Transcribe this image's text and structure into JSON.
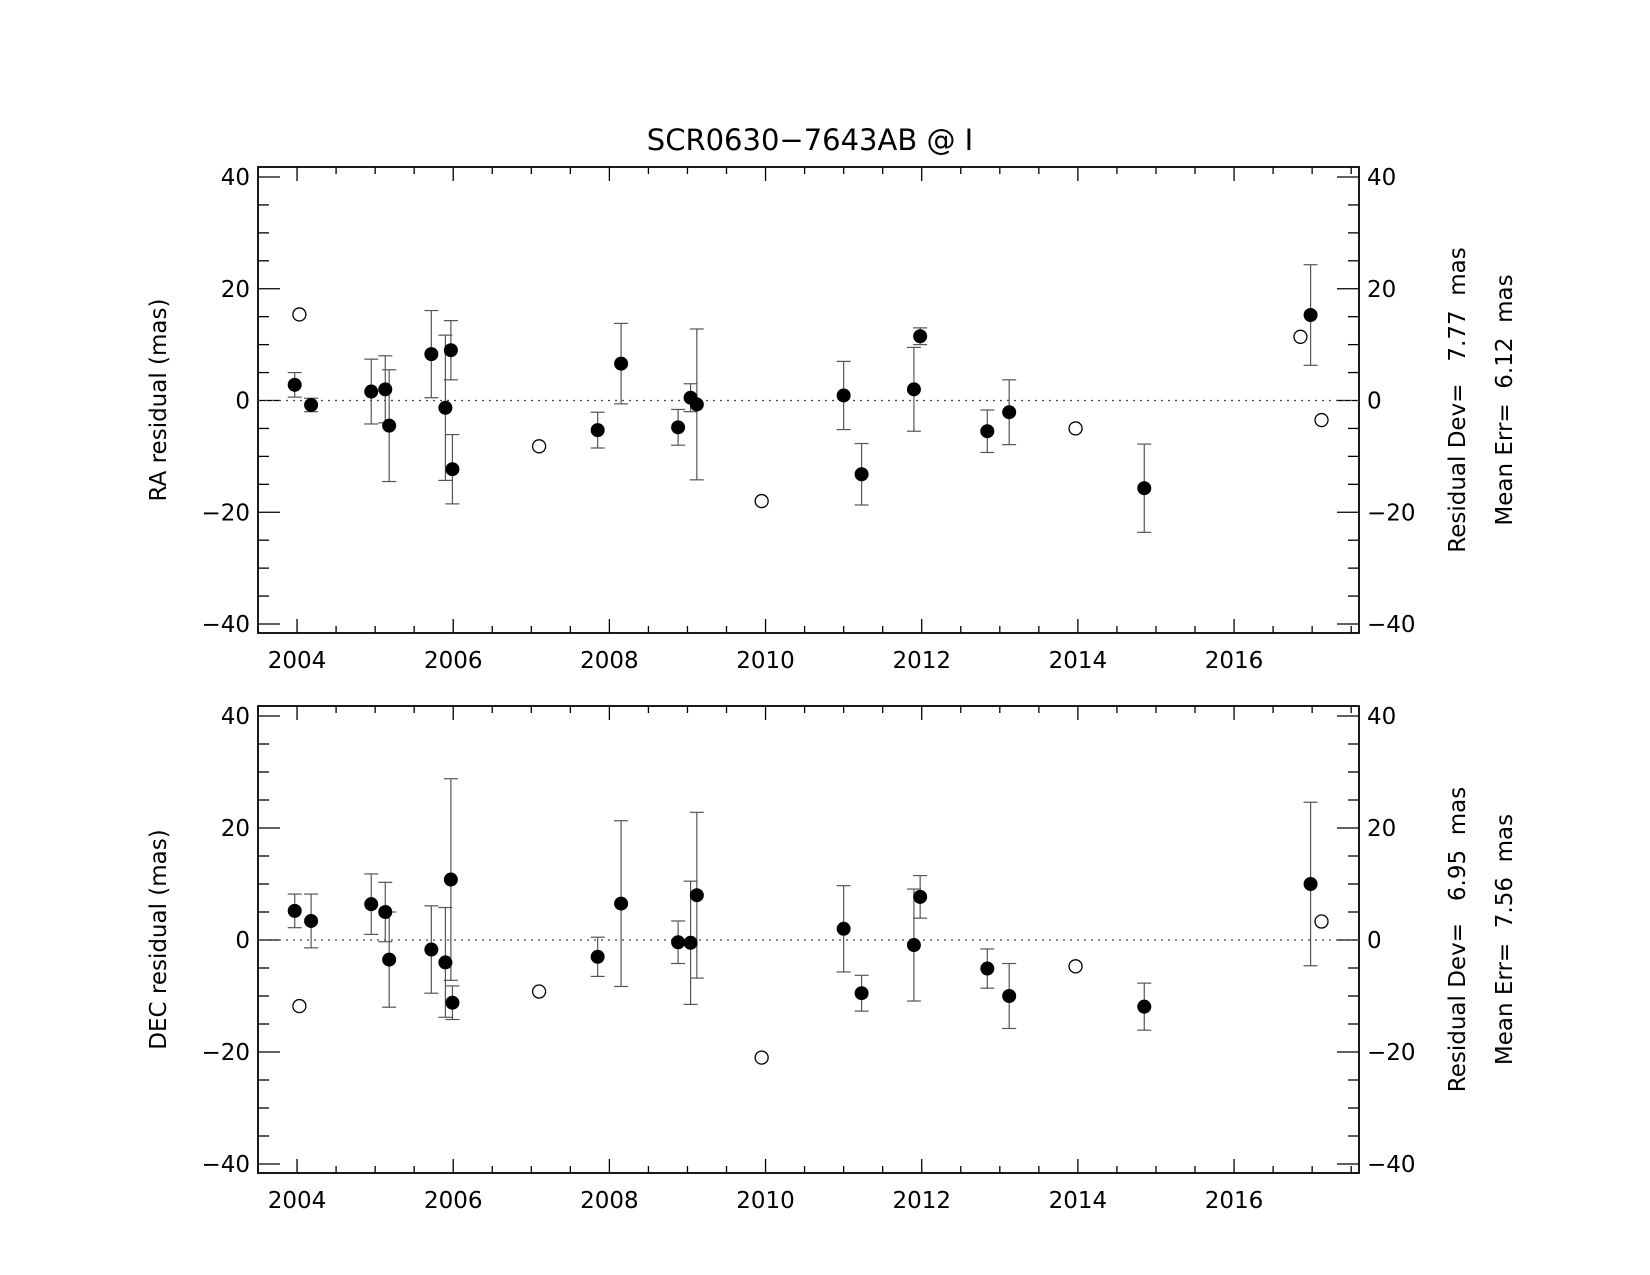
{
  "title": "SCR0630−7643AB @ I",
  "chart_data": [
    {
      "type": "scatter",
      "panel": "top",
      "ylabel": "RA residual (mas)",
      "xlim": [
        2003.5,
        2017.6
      ],
      "ylim": [
        -40,
        40
      ],
      "xticks": [
        2004,
        2006,
        2008,
        2010,
        2012,
        2014,
        2016
      ],
      "yticks": [
        -40,
        -20,
        0,
        20,
        40
      ],
      "grid": false,
      "zero_line": "dotted",
      "stats": [
        "Residual Dev=   7.77  mas",
        "Mean Err=  6.12  mas"
      ],
      "used": [
        {
          "x": 2003.97,
          "y": 2.8,
          "err": 2.2
        },
        {
          "x": 2004.18,
          "y": -0.8,
          "err": 1.2
        },
        {
          "x": 2004.95,
          "y": 1.6,
          "err": 5.8
        },
        {
          "x": 2005.13,
          "y": 2.0,
          "err": 6.0
        },
        {
          "x": 2005.18,
          "y": -4.5,
          "err": 10.0
        },
        {
          "x": 2005.72,
          "y": 8.3,
          "err": 7.8
        },
        {
          "x": 2005.9,
          "y": -1.3,
          "err": 13.0
        },
        {
          "x": 2005.97,
          "y": 9.0,
          "err": 5.3
        },
        {
          "x": 2005.99,
          "y": -12.3,
          "err": 6.2
        },
        {
          "x": 2007.85,
          "y": -5.3,
          "err": 3.2
        },
        {
          "x": 2008.15,
          "y": 6.6,
          "err": 7.2
        },
        {
          "x": 2008.88,
          "y": -4.8,
          "err": 3.2
        },
        {
          "x": 2009.04,
          "y": 0.5,
          "err": 2.5
        },
        {
          "x": 2009.12,
          "y": -0.7,
          "err": 13.5
        },
        {
          "x": 2011.0,
          "y": 0.9,
          "err": 6.1
        },
        {
          "x": 2011.23,
          "y": -13.2,
          "err": 5.5
        },
        {
          "x": 2011.9,
          "y": 2.0,
          "err": 7.5
        },
        {
          "x": 2011.98,
          "y": 11.5,
          "err": 1.5
        },
        {
          "x": 2012.84,
          "y": -5.5,
          "err": 3.8
        },
        {
          "x": 2013.12,
          "y": -2.1,
          "err": 5.8
        },
        {
          "x": 2014.85,
          "y": -15.7,
          "err": 7.9
        },
        {
          "x": 2016.98,
          "y": 15.3,
          "err": 9.0
        }
      ],
      "rejected": [
        {
          "x": 2004.03,
          "y": 15.4
        },
        {
          "x": 2007.1,
          "y": -8.2
        },
        {
          "x": 2009.95,
          "y": -18.0
        },
        {
          "x": 2013.97,
          "y": -5.0
        },
        {
          "x": 2016.85,
          "y": 11.4
        },
        {
          "x": 2017.12,
          "y": -3.5
        }
      ]
    },
    {
      "type": "scatter",
      "panel": "bottom",
      "ylabel": "DEC residual (mas)",
      "xlim": [
        2003.5,
        2017.6
      ],
      "ylim": [
        -40,
        40
      ],
      "xticks": [
        2004,
        2006,
        2008,
        2010,
        2012,
        2014,
        2016
      ],
      "yticks": [
        -40,
        -20,
        0,
        20,
        40
      ],
      "grid": false,
      "zero_line": "dotted",
      "stats": [
        "Residual Dev=   6.95  mas",
        "Mean Err=  7.56  mas"
      ],
      "used": [
        {
          "x": 2003.97,
          "y": 5.2,
          "err": 3.0
        },
        {
          "x": 2004.18,
          "y": 3.4,
          "err": 4.8
        },
        {
          "x": 2004.95,
          "y": 6.4,
          "err": 5.4
        },
        {
          "x": 2005.13,
          "y": 5.0,
          "err": 5.3
        },
        {
          "x": 2005.18,
          "y": -3.5,
          "err": 8.5
        },
        {
          "x": 2005.72,
          "y": -1.7,
          "err": 7.8
        },
        {
          "x": 2005.9,
          "y": -4.0,
          "err": 9.8
        },
        {
          "x": 2005.97,
          "y": 10.8,
          "err": 18.0
        },
        {
          "x": 2005.99,
          "y": -11.2,
          "err": 3.0
        },
        {
          "x": 2007.85,
          "y": -3.0,
          "err": 3.5
        },
        {
          "x": 2008.15,
          "y": 6.5,
          "err": 14.8
        },
        {
          "x": 2008.88,
          "y": -0.4,
          "err": 3.8
        },
        {
          "x": 2009.04,
          "y": -0.5,
          "err": 11.0
        },
        {
          "x": 2009.12,
          "y": 8.0,
          "err": 14.8
        },
        {
          "x": 2011.0,
          "y": 2.0,
          "err": 7.7
        },
        {
          "x": 2011.23,
          "y": -9.5,
          "err": 3.2
        },
        {
          "x": 2011.9,
          "y": -0.9,
          "err": 10.0
        },
        {
          "x": 2011.98,
          "y": 7.7,
          "err": 3.8
        },
        {
          "x": 2012.84,
          "y": -5.1,
          "err": 3.5
        },
        {
          "x": 2013.12,
          "y": -10.0,
          "err": 5.8
        },
        {
          "x": 2014.85,
          "y": -11.9,
          "err": 4.2
        },
        {
          "x": 2016.98,
          "y": 10.0,
          "err": 14.6
        }
      ],
      "rejected": [
        {
          "x": 2004.03,
          "y": -11.8
        },
        {
          "x": 2007.1,
          "y": -9.2
        },
        {
          "x": 2009.95,
          "y": -21.0
        },
        {
          "x": 2013.97,
          "y": -4.7
        },
        {
          "x": 2017.12,
          "y": 3.3
        }
      ]
    }
  ]
}
